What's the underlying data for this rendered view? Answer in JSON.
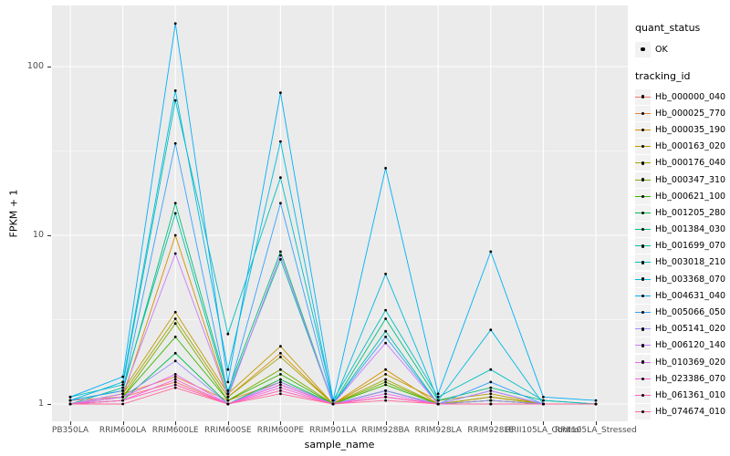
{
  "figure": {
    "background": "#FFFFFF",
    "panel_background": "#EBEBEB",
    "grid_color": "#FFFFFF",
    "tick_color": "#333333",
    "tick_label_color": "#4D4D4D"
  },
  "legend": {
    "quant_status": {
      "title": "quant_status",
      "items": [
        {
          "label": "OK",
          "symbol": "black-point"
        }
      ]
    },
    "tracking_id_title": "tracking_id"
  },
  "chart_data": {
    "type": "line",
    "title": "",
    "xlabel": "sample_name",
    "ylabel": "FPKM + 1",
    "y_scale": "log10",
    "ylim": [
      0.79,
      230
    ],
    "y_ticks": [
      1,
      10,
      100
    ],
    "y_minor_ticks": [
      3.162,
      31.62
    ],
    "grid": true,
    "legend_position": "right",
    "point_color": "#000000",
    "categories": [
      "PB350LA",
      "RRIM600LA",
      "RRIM600LE",
      "RRIM600SE",
      "RRIM600PE",
      "RRIM901LA",
      "RRIM928BA",
      "RRIM928LA",
      "RRIM928LE",
      "RRII105LA_Control",
      "RRII105LA_Stressed"
    ],
    "series": [
      {
        "name": "Hb_000000_040",
        "color": "#F8766D",
        "values": [
          1.05,
          1.1,
          1.35,
          1.0,
          1.3,
          1.0,
          1.1,
          1.0,
          1.05,
          1.0,
          1.0
        ]
      },
      {
        "name": "Hb_000025_770",
        "color": "#EA8331",
        "values": [
          1.0,
          1.15,
          1.45,
          1.05,
          1.35,
          1.0,
          1.2,
          1.0,
          1.1,
          1.0,
          1.0
        ]
      },
      {
        "name": "Hb_000035_190",
        "color": "#D89000",
        "values": [
          1.0,
          1.1,
          10.0,
          1.1,
          2.0,
          1.0,
          1.6,
          1.0,
          1.1,
          1.0,
          1.0
        ]
      },
      {
        "name": "Hb_000163_020",
        "color": "#C09B00",
        "values": [
          1.05,
          1.2,
          3.5,
          1.15,
          2.2,
          1.0,
          1.5,
          1.05,
          1.15,
          1.0,
          1.0
        ]
      },
      {
        "name": "Hb_000176_040",
        "color": "#A3A500",
        "values": [
          1.0,
          1.15,
          3.2,
          1.1,
          1.9,
          1.0,
          1.4,
          1.0,
          1.1,
          1.0,
          1.0
        ]
      },
      {
        "name": "Hb_000347_310",
        "color": "#7CAE00",
        "values": [
          1.0,
          1.1,
          3.0,
          1.05,
          1.6,
          1.0,
          1.35,
          1.0,
          1.05,
          1.0,
          1.0
        ]
      },
      {
        "name": "Hb_000621_100",
        "color": "#39B600",
        "values": [
          1.0,
          1.1,
          2.5,
          1.05,
          1.5,
          1.0,
          1.3,
          1.0,
          1.05,
          1.0,
          1.0
        ]
      },
      {
        "name": "Hb_001205_280",
        "color": "#00BB4E",
        "values": [
          1.0,
          1.05,
          2.0,
          1.0,
          1.4,
          1.0,
          1.2,
          1.0,
          1.0,
          1.0,
          1.0
        ]
      },
      {
        "name": "Hb_001384_030",
        "color": "#00BF7D",
        "values": [
          1.05,
          1.2,
          15.5,
          1.2,
          8.0,
          1.0,
          3.2,
          1.05,
          1.25,
          1.05,
          1.0
        ]
      },
      {
        "name": "Hb_001699_070",
        "color": "#00C1A3",
        "values": [
          1.0,
          1.25,
          13.5,
          1.15,
          7.2,
          1.0,
          2.7,
          1.0,
          1.2,
          1.0,
          1.0
        ]
      },
      {
        "name": "Hb_003018_210",
        "color": "#00BFC4",
        "values": [
          1.1,
          1.3,
          63.0,
          2.6,
          22.0,
          1.05,
          3.6,
          1.1,
          1.6,
          1.05,
          1.0
        ]
      },
      {
        "name": "Hb_003368_070",
        "color": "#00BAE0",
        "values": [
          1.05,
          1.35,
          72.0,
          1.6,
          36.0,
          1.0,
          5.9,
          1.05,
          2.75,
          1.0,
          1.0
        ]
      },
      {
        "name": "Hb_004631_040",
        "color": "#00B0F6",
        "values": [
          1.1,
          1.45,
          180.0,
          1.35,
          70.0,
          1.05,
          25.0,
          1.15,
          8.0,
          1.1,
          1.05
        ]
      },
      {
        "name": "Hb_005066_050",
        "color": "#35A2FF",
        "values": [
          1.05,
          1.2,
          35.0,
          1.15,
          15.5,
          1.0,
          2.5,
          1.0,
          1.35,
          1.0,
          1.0
        ]
      },
      {
        "name": "Hb_005141_020",
        "color": "#9590FF",
        "values": [
          1.0,
          1.1,
          1.8,
          1.0,
          1.35,
          1.0,
          1.2,
          1.0,
          1.05,
          1.0,
          1.0
        ]
      },
      {
        "name": "Hb_006120_140",
        "color": "#C77CFF",
        "values": [
          1.0,
          1.15,
          7.8,
          1.1,
          7.6,
          1.0,
          2.3,
          1.0,
          1.2,
          1.0,
          1.0
        ]
      },
      {
        "name": "Hb_010369_020",
        "color": "#E76BF3",
        "values": [
          1.0,
          1.1,
          1.5,
          1.0,
          1.3,
          1.0,
          1.15,
          1.0,
          1.0,
          1.0,
          1.0
        ]
      },
      {
        "name": "Hb_023386_070",
        "color": "#FA62DB",
        "values": [
          1.0,
          1.05,
          1.4,
          1.0,
          1.25,
          1.0,
          1.1,
          1.0,
          1.0,
          1.0,
          1.0
        ]
      },
      {
        "name": "Hb_061361_010",
        "color": "#FF62BC",
        "values": [
          1.0,
          1.05,
          1.3,
          1.0,
          1.2,
          1.0,
          1.1,
          1.0,
          1.0,
          1.0,
          1.0
        ]
      },
      {
        "name": "Hb_074674_010",
        "color": "#FF6A98",
        "values": [
          1.0,
          1.0,
          1.25,
          1.0,
          1.15,
          1.0,
          1.05,
          1.0,
          1.0,
          1.0,
          1.0
        ]
      }
    ]
  }
}
